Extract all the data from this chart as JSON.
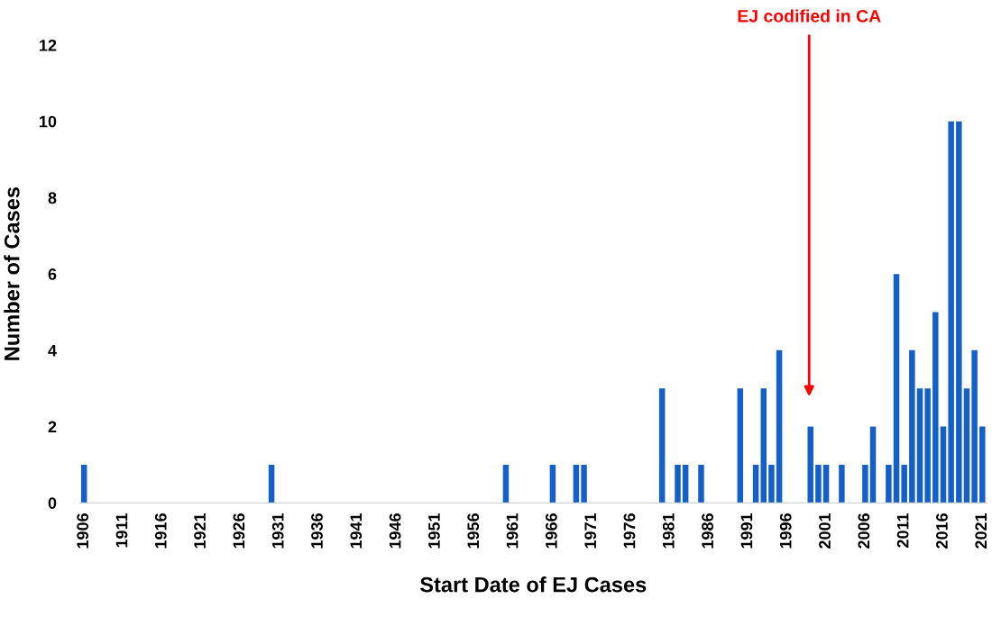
{
  "chart_data": {
    "type": "bar",
    "xlabel": "Start Date of EJ Cases",
    "ylabel": "Number of Cases",
    "color": "#1560c8",
    "categories": [
      "1906",
      null,
      null,
      null,
      null,
      "1911",
      null,
      null,
      null,
      null,
      "1916",
      null,
      null,
      null,
      null,
      "1921",
      null,
      null,
      null,
      null,
      "1926",
      null,
      null,
      null,
      null,
      "1931",
      null,
      null,
      null,
      null,
      "1936",
      null,
      null,
      null,
      null,
      "1941",
      null,
      null,
      null,
      null,
      "1946",
      null,
      null,
      null,
      null,
      "1951",
      null,
      null,
      null,
      null,
      "1956",
      null,
      null,
      null,
      null,
      "1961",
      null,
      null,
      null,
      null,
      "1966",
      null,
      null,
      null,
      null,
      "1971",
      null,
      null,
      null,
      null,
      "1976",
      null,
      null,
      null,
      null,
      "1981",
      null,
      null,
      null,
      null,
      "1986",
      null,
      null,
      null,
      null,
      "1991",
      null,
      null,
      null,
      null,
      "1996",
      null,
      null,
      null,
      null,
      "2001",
      null,
      null,
      null,
      null,
      "2006",
      null,
      null,
      null,
      null,
      "2011",
      null,
      null,
      null,
      null,
      "2016",
      null,
      null,
      null,
      null,
      "2021"
    ],
    "values": [
      1,
      0,
      0,
      0,
      0,
      0,
      0,
      0,
      0,
      0,
      0,
      0,
      0,
      0,
      0,
      0,
      0,
      0,
      0,
      0,
      0,
      0,
      0,
      0,
      1,
      0,
      0,
      0,
      0,
      0,
      0,
      0,
      0,
      0,
      0,
      0,
      0,
      0,
      0,
      0,
      0,
      0,
      0,
      0,
      0,
      0,
      0,
      0,
      0,
      0,
      0,
      0,
      0,
      0,
      1,
      0,
      0,
      0,
      0,
      0,
      1,
      0,
      0,
      1,
      1,
      0,
      0,
      0,
      0,
      0,
      0,
      0,
      0,
      0,
      3,
      0,
      1,
      1,
      0,
      1,
      0,
      0,
      0,
      0,
      3,
      0,
      1,
      3,
      1,
      4,
      0,
      0,
      0,
      2,
      1,
      1,
      0,
      1,
      0,
      0,
      1,
      2,
      0,
      1,
      6,
      1,
      4,
      3,
      3,
      5,
      2,
      10,
      10,
      3,
      4,
      2
    ],
    "ylim": [
      0,
      12
    ],
    "yticks": [
      0,
      2,
      4,
      6,
      8,
      10,
      12
    ],
    "grid": false,
    "annotations": [
      "EJ codified in CA"
    ]
  }
}
